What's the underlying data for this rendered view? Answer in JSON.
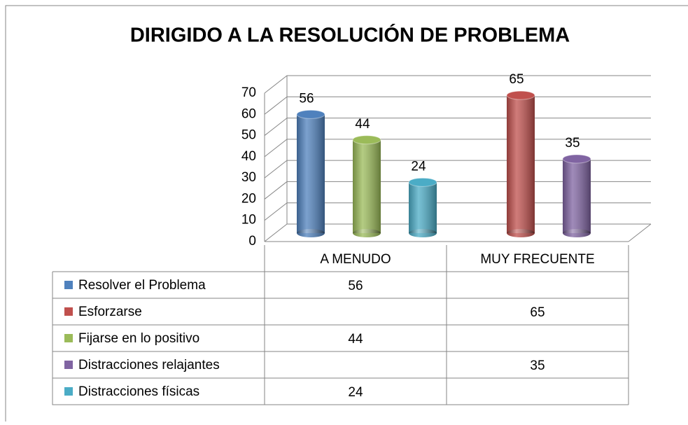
{
  "chart_data": {
    "type": "bar",
    "title": "DIRIGIDO A LA RESOLUCIÓN DE PROBLEMA",
    "categories": [
      "A MENUDO",
      "MUY FRECUENTE"
    ],
    "series": [
      {
        "name": "Resolver el Problema",
        "color": "#4f81bd",
        "values": [
          56,
          null
        ]
      },
      {
        "name": "Esforzarse",
        "color": "#c0504d",
        "values": [
          null,
          65
        ]
      },
      {
        "name": "Fijarse en lo positivo",
        "color": "#9bbb59",
        "values": [
          44,
          null
        ]
      },
      {
        "name": "Distracciones relajantes",
        "color": "#8064a2",
        "values": [
          null,
          35
        ]
      },
      {
        "name": "Distracciones físicas",
        "color": "#4bacc6",
        "values": [
          24,
          null
        ]
      }
    ],
    "ylim": [
      0,
      70
    ],
    "yticks": [
      0,
      10,
      20,
      30,
      40,
      50,
      60,
      70
    ],
    "grid": true
  }
}
